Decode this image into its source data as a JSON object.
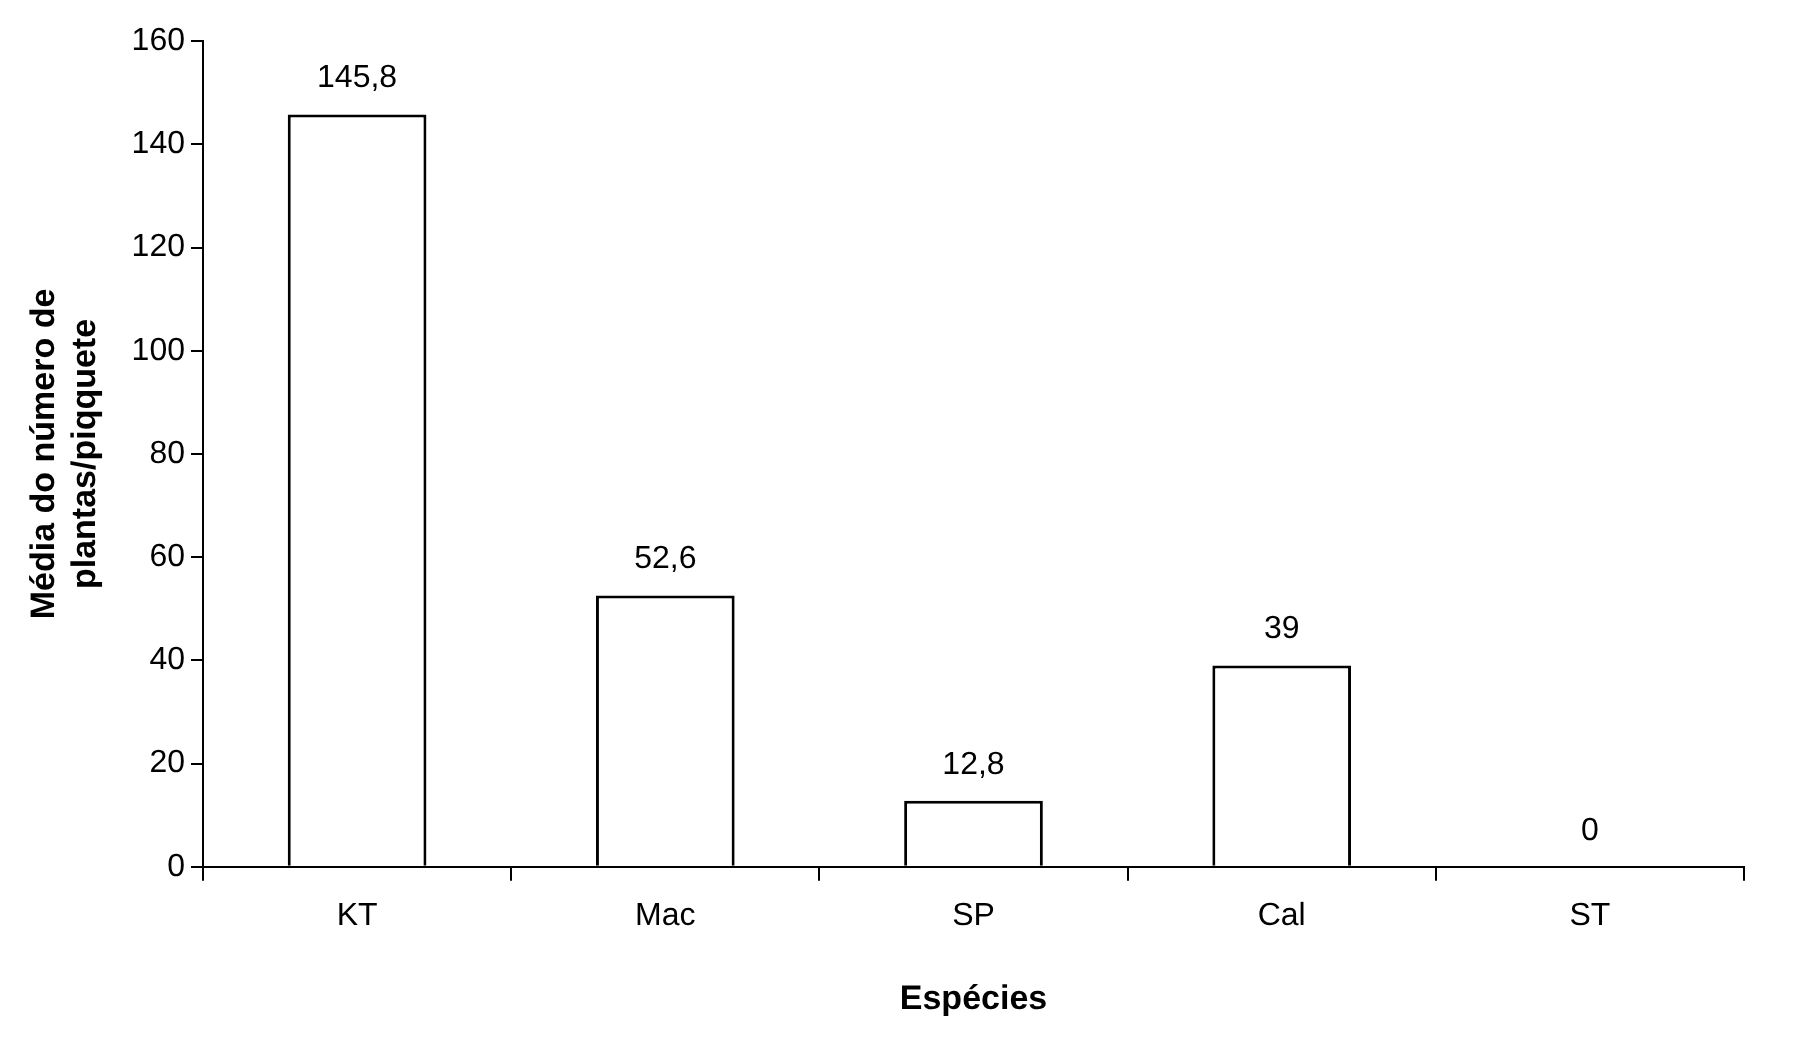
{
  "chart_data": {
    "type": "bar",
    "xlabel": "Espécies",
    "ylabel": "Média do número de\nplantas/piqquete",
    "categories": [
      "KT",
      "Mac",
      "SP",
      "Cal",
      "ST"
    ],
    "values": [
      145.8,
      52.6,
      12.8,
      39,
      0
    ],
    "value_labels": [
      "145,8",
      "52,6",
      "12,8",
      "39",
      "0"
    ],
    "color": "#ffffff",
    "ylim": [
      0,
      160
    ],
    "yticks": [
      0,
      20,
      40,
      60,
      80,
      100,
      120,
      140,
      160
    ],
    "grid": false,
    "legend": false
  }
}
